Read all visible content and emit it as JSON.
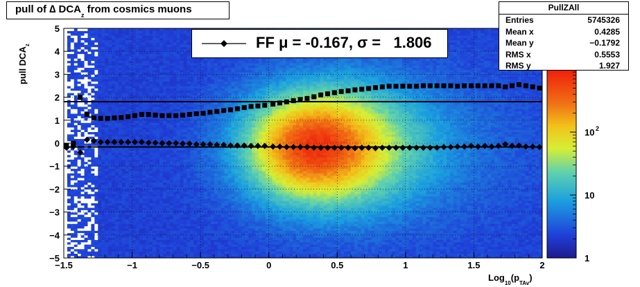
{
  "chart_data": {
    "type": "heatmap",
    "title_main": "pull of ∆ DCA",
    "title_sub": "z",
    "title_rest": " from cosmics muons",
    "ylabel_main": "pull DCA",
    "ylabel_sub": "z",
    "xlabel_main": "Log",
    "xlabel_sub1": "10",
    "xlabel_mid": "(p",
    "xlabel_sub2": "TAv",
    "xlabel_end": ")",
    "xlim": [
      -1.5,
      2
    ],
    "ylim": [
      -5,
      5
    ],
    "x_ticks": [
      "−1.5",
      "−1",
      "−0.5",
      "0",
      "0.5",
      "1",
      "1.5",
      "2"
    ],
    "x_tick_values": [
      -1.5,
      -1,
      -0.5,
      0,
      0.5,
      1,
      1.5,
      2
    ],
    "y_ticks": [
      "−5",
      "−4",
      "−3",
      "−2",
      "−1",
      "0",
      "1",
      "2",
      "3",
      "4",
      "5"
    ],
    "y_tick_values": [
      -5,
      -4,
      -3,
      -2,
      -1,
      0,
      1,
      2,
      3,
      4,
      5
    ],
    "grid": true,
    "colorbar": {
      "scale": "log",
      "range": [
        1,
        1000
      ],
      "labels": [
        {
          "text": "1",
          "value": 1
        },
        {
          "text": "10",
          "value": 10
        },
        {
          "text": "10",
          "sup": "2",
          "value": 100
        }
      ]
    },
    "stats": {
      "name": "PullZAll",
      "rows": [
        {
          "label": "Entries",
          "value": "5745326"
        },
        {
          "label": "Mean x",
          "value": "0.4285"
        },
        {
          "label": "Mean y",
          "value": "−0.1792"
        },
        {
          "label": "RMS x",
          "value": "0.5553"
        },
        {
          "label": "RMS y",
          "value": "1.927"
        }
      ]
    },
    "legend": {
      "label": "FF μ = -0.167, σ =   1.806",
      "marker": "diamond"
    },
    "reference_lines": [
      -0.167,
      1.806
    ],
    "series": [
      {
        "name": "mean",
        "marker": "diamond",
        "x": [
          -1.48,
          -1.43,
          -1.38,
          -1.33,
          -1.28,
          -1.23,
          -1.18,
          -1.13,
          -1.08,
          -1.03,
          -0.98,
          -0.93,
          -0.88,
          -0.83,
          -0.78,
          -0.73,
          -0.68,
          -0.63,
          -0.58,
          -0.53,
          -0.48,
          -0.43,
          -0.38,
          -0.33,
          -0.28,
          -0.23,
          -0.18,
          -0.13,
          -0.08,
          -0.03,
          0.03,
          0.08,
          0.13,
          0.18,
          0.23,
          0.28,
          0.33,
          0.38,
          0.43,
          0.48,
          0.53,
          0.58,
          0.63,
          0.68,
          0.73,
          0.78,
          0.83,
          0.88,
          0.93,
          0.98,
          1.03,
          1.08,
          1.13,
          1.18,
          1.23,
          1.28,
          1.33,
          1.38,
          1.43,
          1.48,
          1.53,
          1.58,
          1.63,
          1.68,
          1.73,
          1.78,
          1.83,
          1.88,
          1.93,
          1.98
        ],
        "y": [
          -0.2,
          -0.15,
          -0.4,
          0.15,
          0.1,
          0.05,
          0.05,
          0.05,
          0.05,
          0.05,
          0.05,
          0.05,
          0.02,
          0.02,
          0.0,
          0.0,
          0.0,
          -0.02,
          -0.02,
          -0.05,
          -0.05,
          -0.05,
          -0.07,
          -0.07,
          -0.1,
          -0.1,
          -0.1,
          -0.12,
          -0.12,
          -0.12,
          -0.15,
          -0.15,
          -0.17,
          -0.17,
          -0.17,
          -0.17,
          -0.2,
          -0.2,
          -0.2,
          -0.2,
          -0.2,
          -0.2,
          -0.22,
          -0.2,
          -0.2,
          -0.22,
          -0.2,
          -0.2,
          -0.2,
          -0.2,
          -0.2,
          -0.2,
          -0.2,
          -0.2,
          -0.2,
          -0.17,
          -0.17,
          -0.15,
          -0.15,
          -0.12,
          -0.15,
          -0.12,
          -0.15,
          -0.12,
          -0.05,
          -0.12,
          -0.1,
          -0.15,
          -0.15,
          -0.17
        ]
      },
      {
        "name": "rms",
        "marker": "square",
        "x": [
          -1.48,
          -1.43,
          -1.38,
          -1.33,
          -1.28,
          -1.23,
          -1.18,
          -1.13,
          -1.08,
          -1.03,
          -0.98,
          -0.93,
          -0.88,
          -0.83,
          -0.78,
          -0.73,
          -0.68,
          -0.63,
          -0.58,
          -0.53,
          -0.48,
          -0.43,
          -0.38,
          -0.33,
          -0.28,
          -0.23,
          -0.18,
          -0.13,
          -0.08,
          -0.03,
          0.03,
          0.08,
          0.13,
          0.18,
          0.23,
          0.28,
          0.33,
          0.38,
          0.43,
          0.48,
          0.53,
          0.58,
          0.63,
          0.68,
          0.73,
          0.78,
          0.83,
          0.88,
          0.93,
          0.98,
          1.03,
          1.08,
          1.13,
          1.18,
          1.23,
          1.28,
          1.33,
          1.38,
          1.43,
          1.48,
          1.53,
          1.58,
          1.63,
          1.68,
          1.73,
          1.78,
          1.83,
          1.88,
          1.93,
          1.98
        ],
        "y": [
          -0.1,
          0.0,
          2.0,
          1.25,
          1.1,
          1.08,
          1.08,
          1.1,
          1.12,
          1.15,
          1.2,
          1.25,
          1.25,
          1.22,
          1.2,
          1.2,
          1.2,
          1.22,
          1.25,
          1.28,
          1.3,
          1.35,
          1.38,
          1.42,
          1.45,
          1.5,
          1.55,
          1.6,
          1.62,
          1.65,
          1.7,
          1.75,
          1.8,
          1.85,
          1.9,
          1.95,
          2.02,
          2.1,
          2.15,
          2.2,
          2.25,
          2.28,
          2.32,
          2.35,
          2.38,
          2.42,
          2.45,
          2.48,
          2.48,
          2.48,
          2.48,
          2.48,
          2.5,
          2.5,
          2.5,
          2.5,
          2.5,
          2.48,
          2.5,
          2.5,
          2.5,
          2.5,
          2.5,
          2.5,
          2.45,
          2.5,
          2.55,
          2.5,
          2.45,
          2.4
        ]
      }
    ]
  }
}
